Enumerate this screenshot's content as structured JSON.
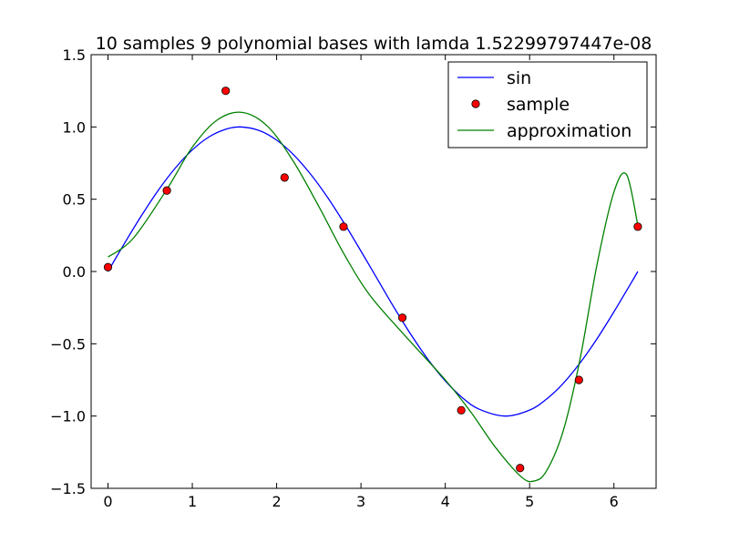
{
  "chart_data": {
    "type": "line",
    "title": "10 samples 9 polynomial bases with lamda 1.52299797447e-08",
    "xlabel": "",
    "ylabel": "",
    "xlim": [
      -0.2,
      6.5
    ],
    "ylim": [
      -1.5,
      1.5
    ],
    "xticks": [
      0,
      1,
      2,
      3,
      4,
      5,
      6
    ],
    "xtick_labels": [
      "0",
      "1",
      "2",
      "3",
      "4",
      "5",
      "6"
    ],
    "yticks": [
      -1.5,
      -1.0,
      -0.5,
      0.0,
      0.5,
      1.0,
      1.5
    ],
    "ytick_labels": [
      "−1.5",
      "−1.0",
      "−0.5",
      "0.0",
      "0.5",
      "1.0",
      "1.5"
    ],
    "grid": false,
    "legend_position": "top-right",
    "series": [
      {
        "name": "sin",
        "kind": "line",
        "color": "#0000ff",
        "x": [
          0,
          0.2,
          0.4,
          0.6,
          0.8,
          1.0,
          1.2,
          1.4,
          1.571,
          1.8,
          2.0,
          2.2,
          2.4,
          2.6,
          2.8,
          3.0,
          3.2,
          3.4,
          3.6,
          3.8,
          4.0,
          4.2,
          4.4,
          4.712,
          5.0,
          5.2,
          5.4,
          5.6,
          5.8,
          6.0,
          6.2,
          6.283
        ],
        "y": [
          0.0,
          0.199,
          0.389,
          0.565,
          0.717,
          0.841,
          0.932,
          0.985,
          1.0,
          0.974,
          0.909,
          0.808,
          0.675,
          0.516,
          0.335,
          0.141,
          -0.058,
          -0.256,
          -0.443,
          -0.612,
          -0.757,
          -0.872,
          -0.952,
          -1.0,
          -0.959,
          -0.883,
          -0.773,
          -0.631,
          -0.465,
          -0.279,
          -0.083,
          0.0
        ]
      },
      {
        "name": "sample",
        "kind": "markers",
        "color": "#ff0000",
        "x": [
          0.0,
          0.698,
          1.396,
          2.094,
          2.793,
          3.491,
          4.189,
          4.887,
          5.585,
          6.283
        ],
        "y": [
          0.03,
          0.56,
          1.25,
          0.65,
          0.31,
          -0.32,
          -0.96,
          -1.36,
          -0.75,
          0.31
        ]
      },
      {
        "name": "approximation",
        "kind": "line",
        "color": "#008000",
        "x": [
          0.0,
          0.3,
          0.7,
          1.0,
          1.3,
          1.6,
          1.9,
          2.2,
          2.5,
          2.8,
          3.1,
          3.5,
          4.0,
          4.3,
          4.6,
          4.9,
          5.05,
          5.2,
          5.4,
          5.6,
          5.8,
          6.0,
          6.15,
          6.283
        ],
        "y": [
          0.1,
          0.23,
          0.57,
          0.86,
          1.05,
          1.1,
          1.0,
          0.76,
          0.45,
          0.12,
          -0.16,
          -0.43,
          -0.75,
          -0.97,
          -1.22,
          -1.42,
          -1.45,
          -1.38,
          -1.1,
          -0.6,
          0.05,
          0.55,
          0.67,
          0.32
        ]
      }
    ]
  }
}
